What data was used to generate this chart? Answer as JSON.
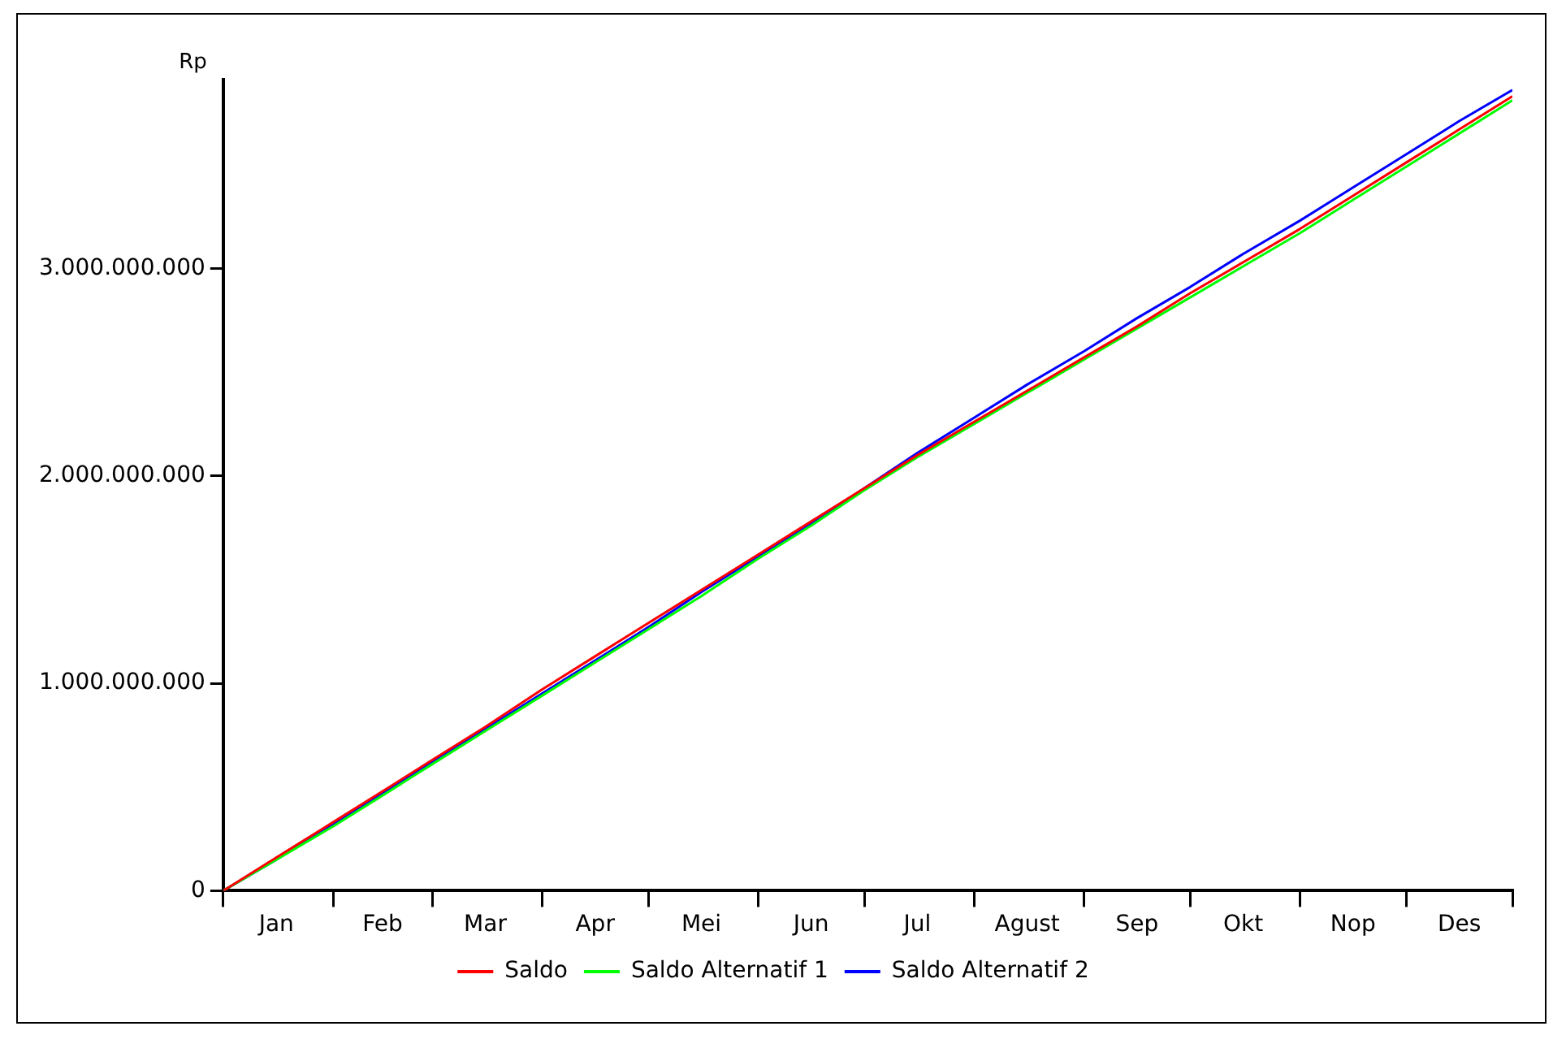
{
  "chart_data": {
    "type": "line",
    "ylabel": "Rp",
    "x": [
      "--01-01",
      "--01-16",
      "--02-01",
      "--02-16",
      "--03-01",
      "--03-16",
      "--04-01",
      "--04-16",
      "--05-01",
      "--05-16",
      "--06-01",
      "--06-16",
      "--07-01",
      "--07-16",
      "--08-01",
      "--08-16",
      "--09-01",
      "--09-16",
      "--10-01",
      "--10-16",
      "--11-01",
      "--11-16",
      "--12-01",
      "--12-16",
      "--12-31"
    ],
    "series": [
      {
        "name": "Saldo",
        "color": "#ff0000",
        "values": [
          0,
          160000000,
          330000000,
          490000000,
          630000000,
          790000000,
          970000000,
          1130000000,
          1290000000,
          1450000000,
          1620000000,
          1780000000,
          1940000000,
          2100000000,
          2260000000,
          2410000000,
          2570000000,
          2720000000,
          2880000000,
          3030000000,
          3190000000,
          3350000000,
          3510000000,
          3670000000,
          3830000000
        ]
      },
      {
        "name": "Saldo Alternatif 1",
        "color": "#00ff00",
        "values": [
          0,
          150000000,
          310000000,
          470000000,
          610000000,
          770000000,
          940000000,
          1100000000,
          1260000000,
          1420000000,
          1600000000,
          1760000000,
          1930000000,
          2090000000,
          2250000000,
          2400000000,
          2560000000,
          2710000000,
          2860000000,
          3010000000,
          3170000000,
          3330000000,
          3490000000,
          3650000000,
          3810000000
        ]
      },
      {
        "name": "Saldo Alternatif 2",
        "color": "#0000ff",
        "values": [
          0,
          150000000,
          320000000,
          480000000,
          620000000,
          780000000,
          950000000,
          1110000000,
          1270000000,
          1440000000,
          1610000000,
          1770000000,
          1940000000,
          2110000000,
          2280000000,
          2440000000,
          2600000000,
          2760000000,
          2910000000,
          3070000000,
          3230000000,
          3390000000,
          3550000000,
          3710000000,
          3860000000
        ]
      }
    ],
    "xlim": [
      "--01-01",
      "--12-31"
    ],
    "xticks": [
      {
        "value": "--01-01",
        "label": null
      },
      {
        "value": "--01-16",
        "label": "Jan"
      },
      {
        "value": "--02-01",
        "label": null
      },
      {
        "value": "--02-15",
        "label": "Feb"
      },
      {
        "value": "--03-01",
        "label": null
      },
      {
        "value": "--03-16",
        "label": "Mar"
      },
      {
        "value": "--04-01",
        "label": null
      },
      {
        "value": "--04-16",
        "label": "Apr"
      },
      {
        "value": "--05-01",
        "label": null
      },
      {
        "value": "--05-16",
        "label": "Mei"
      },
      {
        "value": "--06-01",
        "label": null
      },
      {
        "value": "--06-16",
        "label": "Jun"
      },
      {
        "value": "--07-01",
        "label": null
      },
      {
        "value": "--07-16",
        "label": "Jul"
      },
      {
        "value": "--08-01",
        "label": null
      },
      {
        "value": "--08-16",
        "label": "Agust"
      },
      {
        "value": "--09-01",
        "label": null
      },
      {
        "value": "--09-16",
        "label": "Sep"
      },
      {
        "value": "--10-01",
        "label": null
      },
      {
        "value": "--10-16",
        "label": "Okt"
      },
      {
        "value": "--11-01",
        "label": null
      },
      {
        "value": "--11-16",
        "label": "Nop"
      },
      {
        "value": "--12-01",
        "label": null
      },
      {
        "value": "--12-16",
        "label": "Des"
      },
      {
        "value": "--12-31",
        "label": null
      }
    ],
    "ylim": [
      0,
      3910000000
    ],
    "yticks": [
      0,
      {
        "value": 1000000000,
        "label": "1.000.000.000"
      },
      {
        "value": 2000000000,
        "label": "2.000.000.000"
      },
      {
        "value": 3000000000,
        "label": "3.000.000.000"
      }
    ],
    "grid": false,
    "legend": "bottom",
    "marker": "none",
    "line_style": "solid"
  }
}
